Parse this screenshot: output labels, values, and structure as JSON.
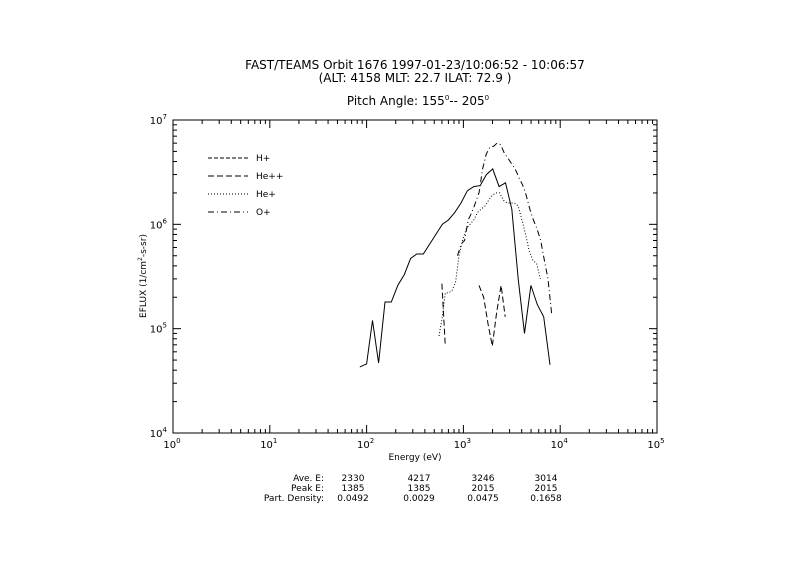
{
  "chart_data": {
    "type": "line",
    "title": "FAST/TEAMS  Orbit 1676  1997-01-23/10:06:52 - 10:06:57",
    "subtitle": "(ALT: 4158  MLT: 22.7  ILAT: 72.9  )",
    "pitch_label": "Pitch Angle: 155",
    "pitch_mid": "-- 205",
    "pitch_sup": "0",
    "xlabel": "Energy (eV)",
    "ylabel_pre": "EFLUX (1/cm",
    "ylabel_sup": "2",
    "ylabel_post": "-s-sr)",
    "x_scale": "log",
    "y_scale": "log",
    "xlim": [
      1,
      100000
    ],
    "ylim": [
      10000,
      10000000
    ],
    "x_ticks": [
      {
        "base": "10",
        "exp": "0"
      },
      {
        "base": "10",
        "exp": "1"
      },
      {
        "base": "10",
        "exp": "2"
      },
      {
        "base": "10",
        "exp": "3"
      },
      {
        "base": "10",
        "exp": "4"
      },
      {
        "base": "10",
        "exp": "5"
      }
    ],
    "y_ticks": [
      {
        "base": "10",
        "exp": "4"
      },
      {
        "base": "10",
        "exp": "5"
      },
      {
        "base": "10",
        "exp": "6"
      },
      {
        "base": "10",
        "exp": "7"
      }
    ],
    "grid": false,
    "legend_position": "top-left",
    "series": [
      {
        "name": "H+",
        "dash": "solid",
        "x": [
          85,
          100,
          115,
          133,
          155,
          180,
          210,
          245,
          285,
          330,
          385,
          450,
          520,
          605,
          700,
          815,
          945,
          1100,
          1280,
          1490,
          1730,
          2010,
          2340,
          2720,
          3160,
          3680,
          4280,
          4980,
          5800,
          6750,
          7850
        ],
        "y": [
          43000,
          46000,
          120000,
          47000,
          180000,
          180000,
          260000,
          330000,
          470000,
          520000,
          520000,
          650000,
          800000,
          1000000,
          1100000,
          1300000,
          1600000,
          2100000,
          2300000,
          2350000,
          3000000,
          3400000,
          2300000,
          2500000,
          1400000,
          300000,
          90000,
          260000,
          170000,
          130000,
          45000
        ]
      },
      {
        "name": "He++",
        "dash": "dashed",
        "segments": [
          {
            "x": [
              600,
              650
            ],
            "y": [
              270000,
              68000
            ]
          },
          {
            "x": [
              1450,
              1620,
              1800,
              1990,
              2200,
              2450,
              2700
            ],
            "y": [
              260000,
              200000,
              110000,
              68000,
              140000,
              260000,
              130000
            ]
          }
        ]
      },
      {
        "name": "He+",
        "dash": "dotted",
        "x": [
          560,
          605,
          650,
          700,
          760,
          830,
          900,
          980,
          1070,
          1170,
          1280,
          1400,
          1530,
          1670,
          1820,
          1990,
          2170,
          2370,
          2590,
          2830,
          3090,
          3370,
          3680,
          4020,
          4390,
          4790,
          5230,
          5710,
          6240
        ],
        "y": [
          85000,
          130000,
          220000,
          220000,
          230000,
          280000,
          500000,
          700000,
          900000,
          1000000,
          1100000,
          1300000,
          1400000,
          1500000,
          1700000,
          1900000,
          2000000,
          2000000,
          1700000,
          1600000,
          1600000,
          1600000,
          1500000,
          1100000,
          800000,
          550000,
          450000,
          420000,
          300000
        ]
      },
      {
        "name": "O+",
        "dash": "dashdot",
        "x": [
          870,
          950,
          1030,
          1120,
          1220,
          1330,
          1450,
          1580,
          1720,
          1880,
          2050,
          2230,
          2430,
          2650,
          2890,
          3150,
          3430,
          3740,
          4080,
          4450,
          4850,
          5290,
          5770,
          6290,
          6860,
          7480,
          8150
        ],
        "y": [
          500000,
          650000,
          700000,
          1100000,
          1300000,
          1600000,
          2000000,
          3400000,
          4700000,
          5500000,
          5600000,
          6000000,
          5800000,
          4800000,
          4300000,
          3800000,
          3400000,
          2800000,
          2400000,
          1900000,
          1400000,
          1100000,
          900000,
          700000,
          450000,
          300000,
          140000
        ]
      }
    ]
  },
  "stats": {
    "rows": [
      {
        "label": "Ave. E:",
        "values": [
          "2330",
          "4217",
          "3246",
          "3014"
        ]
      },
      {
        "label": "Peak E:",
        "values": [
          "1385",
          "1385",
          "2015",
          "2015"
        ]
      },
      {
        "label": "Part. Density:",
        "values": [
          "0.0492",
          "0.0029",
          "0.0475",
          "0.1658"
        ]
      }
    ]
  }
}
